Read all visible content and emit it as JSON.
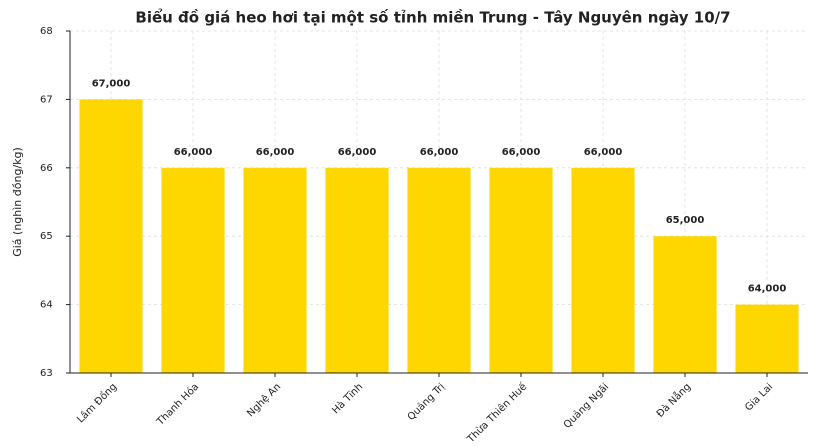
{
  "chart_data": {
    "type": "bar",
    "title": "Biểu đồ giá heo hơi tại một số tỉnh miền Trung - Tây Nguyên ngày 10/7",
    "y_label": "Giá (nghìn đồng/kg)",
    "categories": [
      "Lâm Đồng",
      "Thanh Hóa",
      "Nghệ An",
      "Hà Tĩnh",
      "Quảng Trị",
      "Thừa Thiên Huế",
      "Quảng Ngãi",
      "Đà Nẵng",
      "Gia Lai"
    ],
    "values": [
      67,
      66,
      66,
      66,
      66,
      66,
      66,
      65,
      64
    ],
    "value_labels": [
      "67,000",
      "66,000",
      "66,000",
      "66,000",
      "66,000",
      "66,000",
      "66,000",
      "65,000",
      "64,000"
    ],
    "color": "#ffd700",
    "ylim": [
      63,
      68
    ],
    "yticks": [
      63,
      64,
      65,
      66,
      67,
      68
    ],
    "grid": true
  }
}
